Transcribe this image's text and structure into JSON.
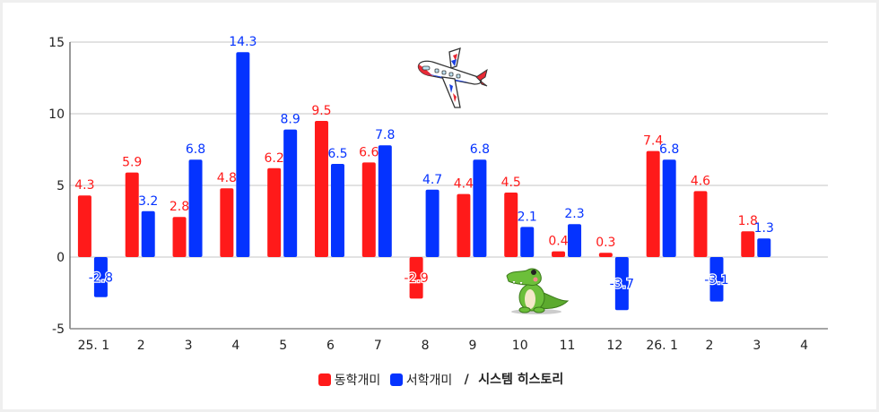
{
  "chart_data": {
    "type": "bar",
    "title": "",
    "xlabel": "",
    "ylabel": "",
    "ylim": [
      -5,
      15
    ],
    "yticks": [
      15,
      10,
      5,
      0,
      -5
    ],
    "grid": true,
    "legend_position": "bottom",
    "categories": [
      "25. 1",
      "2",
      "3",
      "4",
      "5",
      "6",
      "7",
      "8",
      "9",
      "10",
      "11",
      "12",
      "26. 1",
      "2",
      "3",
      "4"
    ],
    "series": [
      {
        "name": "동학개미",
        "color": "#ff1a1a",
        "values": [
          4.3,
          5.9,
          2.8,
          4.8,
          6.2,
          9.5,
          6.6,
          -2.9,
          4.4,
          4.5,
          0.4,
          0.3,
          7.4,
          4.6,
          1.8,
          null
        ]
      },
      {
        "name": "서학개미",
        "color": "#0533ff",
        "values": [
          -2.8,
          3.2,
          6.8,
          14.3,
          8.9,
          6.5,
          7.8,
          4.7,
          6.8,
          2.1,
          2.3,
          -3.7,
          6.8,
          -3.1,
          1.3,
          null
        ]
      }
    ],
    "annotations": [
      "airplane-illustration",
      "crocodile-illustration"
    ]
  },
  "legend": {
    "items": [
      {
        "label": "동학개미",
        "color": "#ff1a1a"
      },
      {
        "label": "서학개미",
        "color": "#0533ff"
      }
    ],
    "separator": "/",
    "title": "시스템 히스토리"
  }
}
